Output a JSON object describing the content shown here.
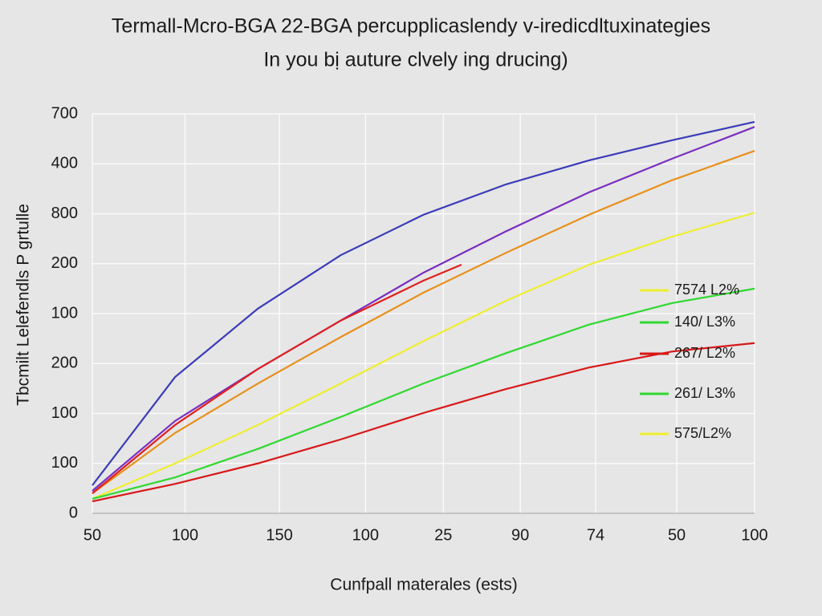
{
  "chart_data": {
    "type": "line",
    "title": "Termall-Mcro-BGA 22-BGA percupplicaslendy v-iredicdltuxinategies",
    "subtitle": "In you bị auture clvely ing drucing)",
    "x_label": "Cunfpall materales (ests)",
    "y_label": "Tbcmilt Lelefendls P grtulle",
    "xlim": [
      0,
      8
    ],
    "ylim": [
      0,
      8
    ],
    "grid": true,
    "xticks": [
      {
        "value": 0,
        "label": "50"
      },
      {
        "value": 1.12,
        "label": "100"
      },
      {
        "value": 2.26,
        "label": "150"
      },
      {
        "value": 3.3,
        "label": "100"
      },
      {
        "value": 4.24,
        "label": "25"
      },
      {
        "value": 5.17,
        "label": "90"
      },
      {
        "value": 6.08,
        "label": "74"
      },
      {
        "value": 7.06,
        "label": "50"
      },
      {
        "value": 8,
        "label": "100"
      }
    ],
    "yticks": [
      {
        "value": 0,
        "label": "0"
      },
      {
        "value": 1,
        "label": "100"
      },
      {
        "value": 2,
        "label": "100"
      },
      {
        "value": 3,
        "label": "200"
      },
      {
        "value": 4,
        "label": "100"
      },
      {
        "value": 5,
        "label": "200"
      },
      {
        "value": 6,
        "label": "800"
      },
      {
        "value": 7,
        "label": "400"
      },
      {
        "value": 8,
        "label": "700"
      }
    ],
    "series": [
      {
        "color": "#3b3bb8",
        "x": [
          0,
          1,
          2,
          3,
          4,
          5,
          6,
          7,
          8
        ],
        "values": [
          0.56,
          2.73,
          4.1,
          5.17,
          5.98,
          6.59,
          7.07,
          7.47,
          7.84
        ]
      },
      {
        "color": "#7a2ec0",
        "x": [
          0,
          1,
          2,
          3,
          4,
          5,
          6,
          7,
          8
        ],
        "values": [
          0.45,
          1.85,
          2.89,
          3.86,
          4.82,
          5.65,
          6.43,
          7.1,
          7.74
        ]
      },
      {
        "color": "#e8901a",
        "x": [
          0,
          1,
          2,
          3,
          4,
          5,
          6,
          7,
          8
        ],
        "values": [
          0.4,
          1.61,
          2.6,
          3.53,
          4.42,
          5.22,
          5.98,
          6.67,
          7.26
        ]
      },
      {
        "color": "#e02020",
        "x": [
          0,
          1,
          2,
          3,
          4,
          4.46
        ],
        "values": [
          0.4,
          1.77,
          2.89,
          3.86,
          4.66,
          4.98
        ]
      },
      {
        "color": "#eeee30",
        "x": [
          0,
          1,
          2,
          3,
          4,
          5,
          6,
          7,
          8
        ],
        "values": [
          0.29,
          1.0,
          1.77,
          2.6,
          3.45,
          4.26,
          4.98,
          5.54,
          6.02
        ]
      },
      {
        "color": "#30d830",
        "x": [
          0,
          1,
          2,
          3,
          4,
          5,
          6,
          7,
          8
        ],
        "values": [
          0.29,
          0.72,
          1.29,
          1.93,
          2.6,
          3.21,
          3.78,
          4.21,
          4.5
        ]
      },
      {
        "color": "#d81818",
        "x": [
          0,
          1,
          2,
          3,
          4,
          5,
          6,
          7,
          8
        ],
        "values": [
          0.24,
          0.59,
          1.0,
          1.48,
          2.01,
          2.49,
          2.92,
          3.24,
          3.41
        ]
      }
    ],
    "legend_items": [
      {
        "label": "7574 L2%",
        "color": "#eeee30"
      },
      {
        "label": "140/ L3%",
        "color": "#30d830"
      },
      {
        "label": "267/ L2%",
        "color": "#d81818"
      },
      {
        "label": "261/ L3%",
        "color": "#30d830"
      },
      {
        "label": "575/L2%",
        "color": "#eeee30"
      }
    ]
  }
}
